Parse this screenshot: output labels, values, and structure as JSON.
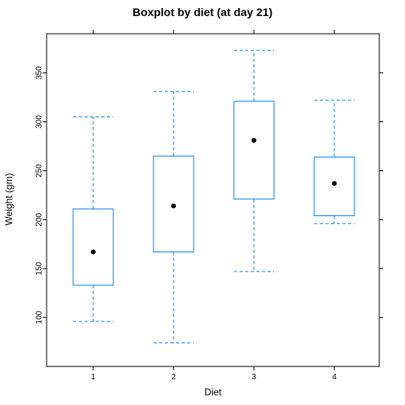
{
  "chart_data": {
    "type": "box",
    "title": "Boxplot by diet (at day 21)",
    "xlabel": "Diet",
    "ylabel": "Weight (gm)",
    "categories": [
      "1",
      "2",
      "3",
      "4"
    ],
    "ylim": [
      50,
      390
    ],
    "yticks": [
      100,
      150,
      200,
      250,
      300,
      350
    ],
    "grid": false,
    "boxes": [
      {
        "category": "1",
        "min": 96,
        "q1": 133,
        "median": 167,
        "q3": 211,
        "max": 305
      },
      {
        "category": "2",
        "min": 74,
        "q1": 167,
        "median": 214,
        "q3": 265,
        "max": 331
      },
      {
        "category": "3",
        "min": 147,
        "q1": 221,
        "median": 281,
        "q3": 321,
        "max": 373
      },
      {
        "category": "4",
        "min": 196,
        "q1": 204,
        "median": 237,
        "q3": 264,
        "max": 322
      }
    ],
    "colors": {
      "box": "#0080ff",
      "median_dot": "#000000"
    }
  }
}
